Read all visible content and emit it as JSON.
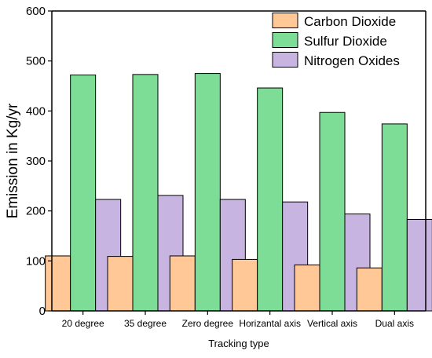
{
  "chart_data": {
    "type": "bar",
    "title": "",
    "xlabel": "Tracking type",
    "ylabel": "Emission in Kg/yr",
    "categories": [
      "20 degree",
      "35 degree",
      "Zero degree",
      "Horizantal axis",
      "Vertical axis",
      "Dual axis"
    ],
    "series": [
      {
        "name": "Carbon Dioxide",
        "color": "#ffc896",
        "values": [
          110,
          109,
          110,
          103,
          92,
          86
        ]
      },
      {
        "name": "Sulfur Dioxide",
        "color": "#7ddc96",
        "values": [
          472,
          473,
          475,
          446,
          397,
          374
        ]
      },
      {
        "name": "Nitrogen Oxides",
        "color": "#c8b4e0",
        "values": [
          223,
          231,
          223,
          218,
          194,
          183
        ]
      }
    ],
    "ylim": [
      0,
      600
    ],
    "yticks": [
      0,
      100,
      200,
      300,
      400,
      500,
      600
    ],
    "grid": false,
    "legend_position": "top-right"
  }
}
